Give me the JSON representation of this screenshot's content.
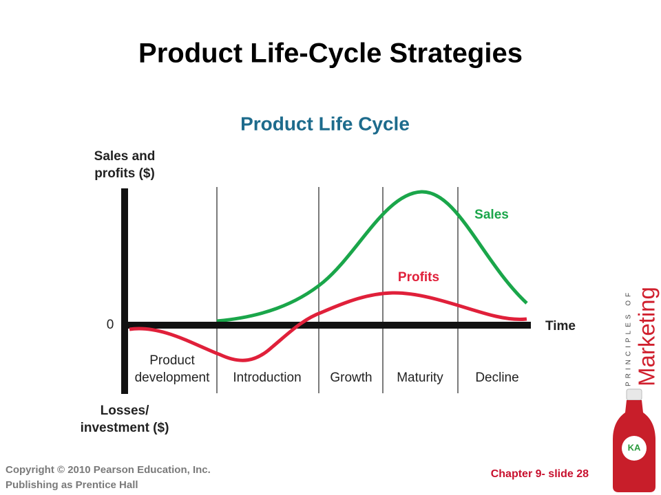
{
  "header": {
    "title": "Product Life-Cycle Strategies"
  },
  "diagram": {
    "title": "Product Life Cycle",
    "y_axis_label_top": [
      "Sales and",
      "profits ($)"
    ],
    "y_axis_label_bottom": [
      "Losses/",
      "investment ($)"
    ],
    "zero_label": "0",
    "x_axis_label": "Time",
    "stages": [
      [
        "Product",
        "development"
      ],
      [
        "Introduction"
      ],
      [
        "Growth"
      ],
      [
        "Maturity"
      ],
      [
        "Decline"
      ]
    ],
    "curves": {
      "sales": "Sales",
      "profits": "Profits"
    }
  },
  "footer": {
    "copyright": [
      "Copyright © 2010 Pearson Education, Inc.",
      "Publishing as Prentice Hall"
    ],
    "slide": "Chapter 9- slide 28"
  },
  "logo": {
    "series": "PRINCIPLES OF",
    "name": "Marketing",
    "bottle": "KA"
  }
}
